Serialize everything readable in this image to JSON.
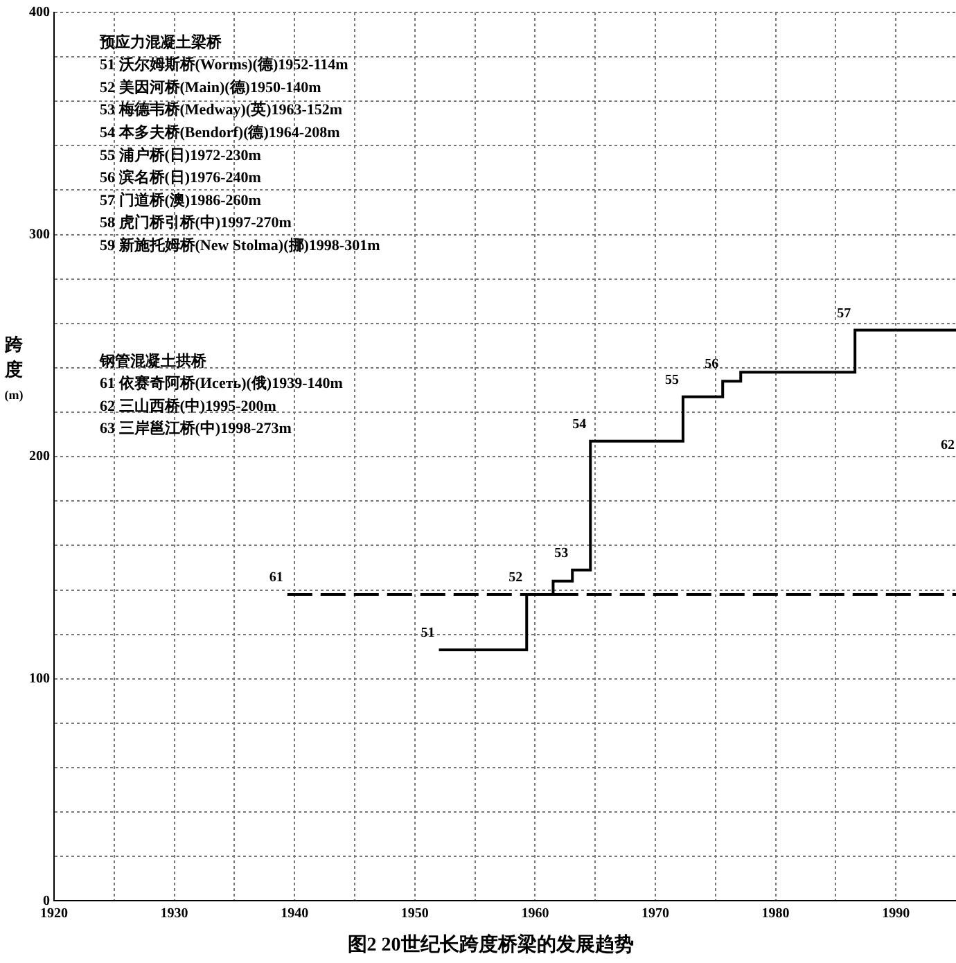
{
  "chart_data": {
    "type": "step",
    "title": "图2 20世纪长跨度桥梁的发展趋势",
    "ylabel": "跨度(m)",
    "series": [
      {
        "color": "#000000",
        "line_style": "solid",
        "x": [
          1952,
          1959.3,
          1961.5,
          1963.1,
          1964.6,
          1972.3,
          1975.6,
          1977.1,
          1986.6,
          1995
        ],
        "values": [
          113,
          138,
          144,
          149,
          207,
          227,
          234,
          238,
          257,
          257
        ]
      },
      {
        "color": "#000000",
        "line_style": "dashed",
        "x": [
          1939.4,
          1995
        ],
        "values": [
          138,
          138
        ]
      }
    ],
    "xlim": [
      1920,
      1995
    ],
    "xticks": [
      1920,
      {
        "value": 1925,
        "label": null
      },
      1930,
      {
        "value": 1935,
        "label": null
      },
      1940,
      {
        "value": 1945,
        "label": null
      },
      1950,
      {
        "value": 1955,
        "label": null
      },
      1960,
      {
        "value": 1965,
        "label": null
      },
      1970,
      {
        "value": 1975,
        "label": null
      },
      1980,
      {
        "value": 1985,
        "label": null
      },
      1990
    ],
    "ylim": [
      0,
      400
    ],
    "yticks": [
      0,
      {
        "value": 20,
        "label": null
      },
      {
        "value": 40,
        "label": null
      },
      {
        "value": 60,
        "label": null
      },
      {
        "value": 80,
        "label": null
      },
      100,
      {
        "value": 120,
        "label": null
      },
      {
        "value": 140,
        "label": null
      },
      {
        "value": 160,
        "label": null
      },
      {
        "value": 180,
        "label": null
      },
      200,
      {
        "value": 220,
        "label": null
      },
      {
        "value": 240,
        "label": null
      },
      {
        "value": 260,
        "label": null
      },
      {
        "value": 280,
        "label": null
      },
      300,
      {
        "value": 320,
        "label": null
      },
      {
        "value": 340,
        "label": null
      },
      {
        "value": 360,
        "label": null
      },
      {
        "value": 380,
        "label": null
      },
      400
    ],
    "grid": true,
    "legend": false,
    "marker": "none",
    "annotations": [
      "预应力混凝土梁桥",
      "51 沃尔姆斯桥(Worms)(德)1952-114m",
      "52 美因河桥(Main)(德)1950-140m",
      "53 梅德韦桥(Medway)(英)1963-152m",
      "54 本多夫桥(Bendorf)(德)1964-208m",
      "55 浦户桥(日)1972-230m",
      "56 滨名桥(日)1976-240m",
      "57 门道桥(澳)1986-260m",
      "58 虎门桥引桥(中)1997-270m",
      "59 新施托姆桥(New Stolma)(挪)1998-301m",
      "钢管混凝土拱桥",
      "61 依赛奇阿桥(Исеть)(俄)1939-140m",
      "62 三山西桥(中)1995-200m",
      "63 三岸邕江桥(中)1998-273m",
      "62",
      {
        "text": "51",
        "x": 1952,
        "y": 113
      },
      {
        "text": "52",
        "x": 1959.3,
        "y": 138
      },
      {
        "text": "53",
        "x": 1963.1,
        "y": 149
      },
      {
        "text": "54",
        "x": 1964.6,
        "y": 207
      },
      {
        "text": "55",
        "x": 1972.3,
        "y": 227
      },
      {
        "text": "56",
        "x": 1975.6,
        "y": 234
      },
      {
        "text": "57",
        "x": 1986.6,
        "y": 257
      },
      {
        "text": "61",
        "x": 1939.4,
        "y": 138
      }
    ]
  }
}
